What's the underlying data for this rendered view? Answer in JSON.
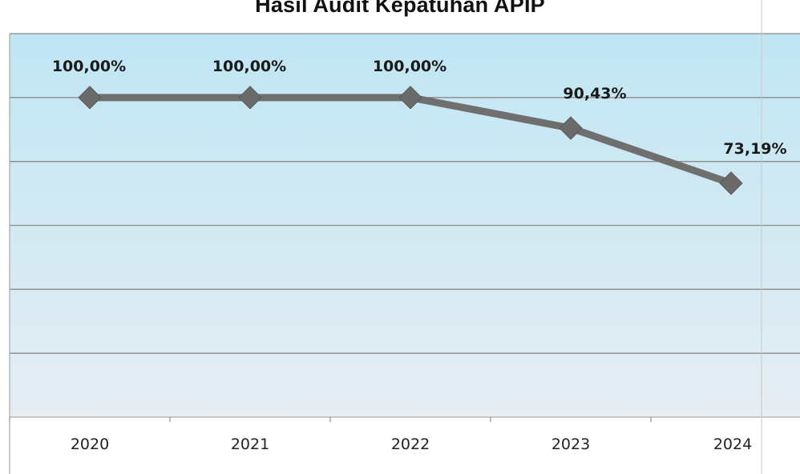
{
  "chart_data": {
    "type": "line",
    "title": "Hasil Audit Kepatuhan APIP",
    "categories": [
      "2020",
      "2021",
      "2022",
      "2023",
      "2024"
    ],
    "series": [
      {
        "values": [
          100.0,
          100.0,
          100.0,
          90.43,
          73.19
        ],
        "labels": [
          "100,00%",
          "100,00%",
          "100,00%",
          "90,43%",
          "73,19%"
        ]
      }
    ],
    "ylim": [
      0,
      120
    ],
    "grid": true,
    "legend": "none",
    "colors": {
      "line": "#6f6f6f",
      "marker": "#6a6a6a",
      "plot_bg_top": "#bfe6f3",
      "plot_bg_bottom": "#e6edf3",
      "gridline": "#8a8a8a"
    }
  }
}
